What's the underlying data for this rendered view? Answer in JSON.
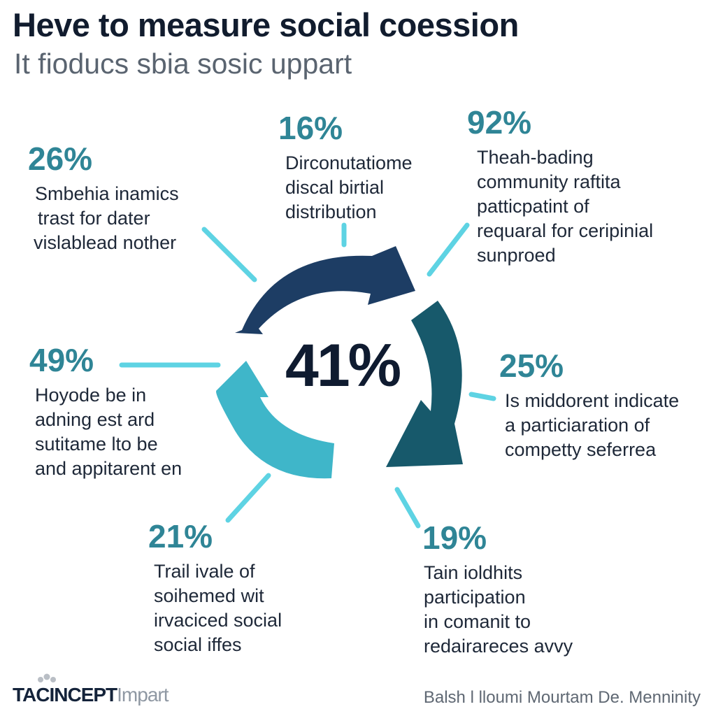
{
  "header": {
    "title": "Heve to measure social coession",
    "subtitle": "It fioducs sbia sosic uppart"
  },
  "center": {
    "value": "41%"
  },
  "stats": [
    {
      "pct": "26%",
      "lines": [
        "Smbehia inamics",
        "trast for dater",
        "vislablead nother"
      ]
    },
    {
      "pct": "16%",
      "lines": [
        "Dirconutatiome",
        "discal birtial",
        "distribution"
      ]
    },
    {
      "pct": "92%",
      "lines": [
        "Theah-bading",
        "community raftita",
        "patticpatint of",
        "requaral for ceripinial",
        "sunproed"
      ]
    },
    {
      "pct": "49%",
      "lines": [
        "Hoyode be in",
        "adning est ard",
        "sutitame lto be",
        "and appitarent en"
      ]
    },
    {
      "pct": "25%",
      "lines": [
        "Is middorent indicate",
        "a particiaration of",
        "competty seferrea"
      ]
    },
    {
      "pct": "21%",
      "lines": [
        "Trail ivale of",
        "soihemed wit",
        "irvaciced social",
        "social iffes"
      ]
    },
    {
      "pct": "19%",
      "lines": [
        "Tain ioldhits",
        "participation",
        "in comanit to",
        "redairareces avvy"
      ]
    }
  ],
  "footer": {
    "brand": "TACINCEPT",
    "brand_suffix": "Impart",
    "credit": "Balsh l lloumi  Mourtam De. Menninity"
  },
  "colors": {
    "arrow_dark_navy": "#1d3d64",
    "arrow_teal": "#17596b",
    "arrow_light": "#3fb6c9",
    "connector": "#5ed3e3",
    "percent": "#2f8596"
  }
}
